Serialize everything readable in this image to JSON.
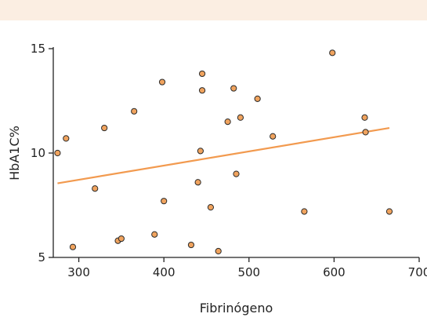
{
  "colors": {
    "header_band": "#fbeee2",
    "point_fill": "#f0a35e",
    "trend_line": "#f29a4f"
  },
  "chart_data": {
    "type": "scatter",
    "xlabel": "Fibrinógeno",
    "ylabel": "HbA1C%",
    "xlim": [
      270,
      700
    ],
    "ylim": [
      5,
      15
    ],
    "x_ticks": [
      300,
      400,
      500,
      600,
      700
    ],
    "y_ticks": [
      5,
      10,
      15
    ],
    "grid": false,
    "legend": "none",
    "points": [
      {
        "x": 275,
        "y": 10.0
      },
      {
        "x": 285,
        "y": 10.7
      },
      {
        "x": 293,
        "y": 5.5
      },
      {
        "x": 319,
        "y": 8.3
      },
      {
        "x": 330,
        "y": 11.2
      },
      {
        "x": 346,
        "y": 5.8
      },
      {
        "x": 350,
        "y": 5.9
      },
      {
        "x": 365,
        "y": 12.0
      },
      {
        "x": 389,
        "y": 6.1
      },
      {
        "x": 398,
        "y": 13.4
      },
      {
        "x": 400,
        "y": 7.7
      },
      {
        "x": 432,
        "y": 5.6
      },
      {
        "x": 440,
        "y": 8.6
      },
      {
        "x": 443,
        "y": 10.1
      },
      {
        "x": 445,
        "y": 13.8
      },
      {
        "x": 445,
        "y": 13.0
      },
      {
        "x": 455,
        "y": 7.4
      },
      {
        "x": 464,
        "y": 5.3
      },
      {
        "x": 475,
        "y": 11.5
      },
      {
        "x": 482,
        "y": 13.1
      },
      {
        "x": 485,
        "y": 9.0
      },
      {
        "x": 490,
        "y": 11.7
      },
      {
        "x": 510,
        "y": 12.6
      },
      {
        "x": 528,
        "y": 10.8
      },
      {
        "x": 565,
        "y": 7.2
      },
      {
        "x": 598,
        "y": 14.8
      },
      {
        "x": 636,
        "y": 11.7
      },
      {
        "x": 637,
        "y": 11.0
      },
      {
        "x": 665,
        "y": 7.2
      }
    ],
    "trend_line": {
      "x": [
        275,
        665
      ],
      "y": [
        8.55,
        11.2
      ]
    }
  }
}
